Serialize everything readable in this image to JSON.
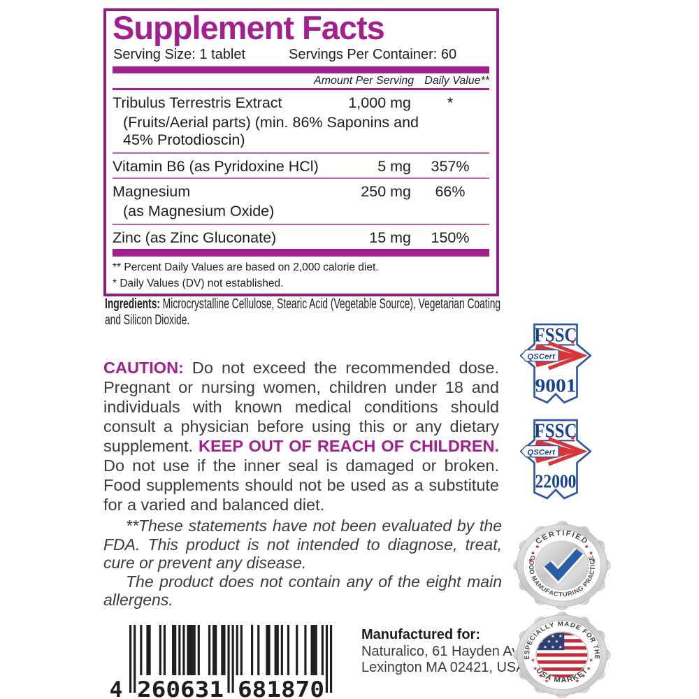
{
  "colors": {
    "magenta": "#A2208E",
    "border": "#8E1F7C",
    "fssc_blue": "#16418C",
    "fssc_red": "#D8343B"
  },
  "supplement_facts": {
    "title": "Supplement Facts",
    "serving_size": "Serving Size: 1 tablet",
    "servings_per_container": "Servings Per Container: 60",
    "col_amount": "Amount Per Serving",
    "col_dv": "Daily Value**",
    "rows": [
      {
        "name": "Tribulus Terrestris Extract",
        "sub": "(Fruits/Aerial parts) (min. 86% Saponins and 45% Protodioscin)",
        "amount": "1,000 mg",
        "dv": "*"
      },
      {
        "name": "Vitamin B6 (as Pyridoxine HCl)",
        "amount": "5 mg",
        "dv": "357%"
      },
      {
        "name": "Magnesium",
        "sub": "(as Magnesium Oxide)",
        "amount": "250 mg",
        "dv": "66%"
      },
      {
        "name": "Zinc (as Zinc Gluconate)",
        "amount": "15 mg",
        "dv": "150%"
      }
    ],
    "footnotes": [
      "** Percent Daily Values are based on 2,000 calorie diet.",
      "* Daily Values (DV) not established."
    ]
  },
  "ingredients": {
    "label": "Ingredients:",
    "text": " Microcrystalline Cellulose, Stearic Acid (Vegetable Source), Vegetarian Coating and Silicon Dioxide."
  },
  "caution": {
    "label": "CAUTION:",
    "part1": " Do not exceed the recommended dose. Pregnant or nursing women, children under 18 and individuals with known medical conditions should consult a physician before using this or any dietary supplement. ",
    "keep_out": "KEEP OUT OF REACH OF CHILDREN.",
    "part2": " Do not use if the inner seal is damaged or broken. Food supplements should not be used as a substitute for a varied and balanced diet."
  },
  "disclaimer": {
    "p1": "**These statements have not been evaluated by the FDA. This product is not intended to diagnose, treat, cure or prevent any disease.",
    "p2": "The product does not contain any of the eight main allergens."
  },
  "barcode": {
    "digits": "4260631681870",
    "display": [
      "4",
      "260631",
      "681870"
    ]
  },
  "manufacturer": {
    "label": "Manufactured for:",
    "line1": "Naturalico, 61 Hayden Ave",
    "line2": "Lexington MA 02421, USA"
  },
  "badges": {
    "fssc9001": {
      "org": "FSSC",
      "cert": "QSCert",
      "number": "9001"
    },
    "fssc22000": {
      "org": "FSSC",
      "cert": "QSCert",
      "number": "22000"
    },
    "gmp": {
      "top": "CERTIFIED",
      "around": "GOOD MANUFACTURING PRACTICE"
    },
    "usa": {
      "top": "ESPECIALLY MADE FOR THE",
      "bottom": "USA MARKET"
    }
  }
}
